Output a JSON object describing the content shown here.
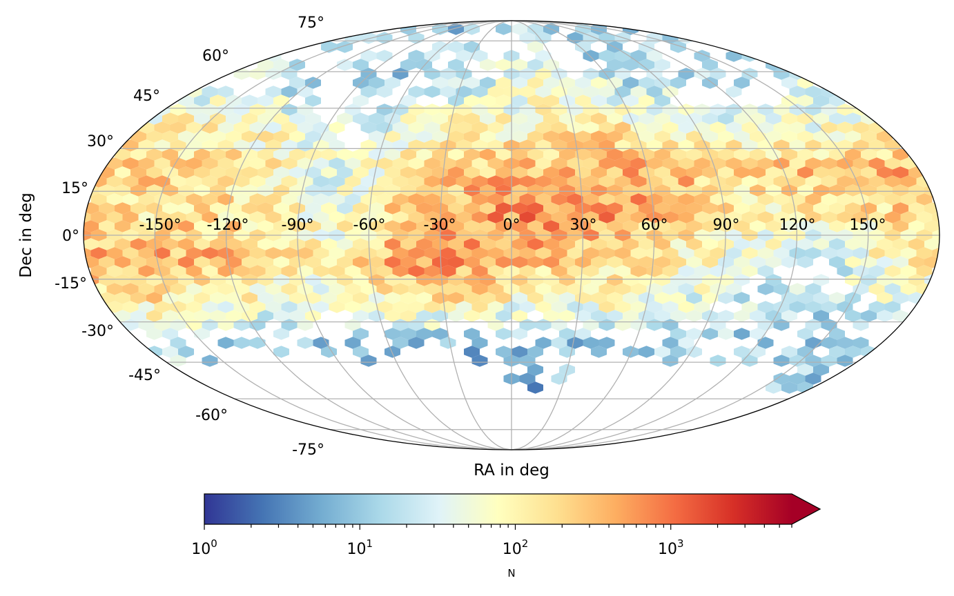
{
  "chart_data": {
    "type": "heatmap",
    "subtype": "hexbin sky map",
    "projection": "mollweide",
    "xlabel": "RA in deg",
    "ylabel": "Dec in deg",
    "ra_tick_labels": [
      "-150°",
      "-120°",
      "-90°",
      "-60°",
      "-30°",
      "0°",
      "30°",
      "60°",
      "90°",
      "120°",
      "150°"
    ],
    "dec_tick_labels": [
      "75°",
      "60°",
      "45°",
      "30°",
      "15°",
      "0°",
      "-15°",
      "-30°",
      "-45°",
      "-60°",
      "-75°"
    ],
    "grid": true,
    "colormap": "RdYlBu_r",
    "colormap_stops": [
      "#313695",
      "#4575b4",
      "#74add1",
      "#abd9e9",
      "#e0f3f8",
      "#ffffbf",
      "#fee090",
      "#fdae61",
      "#f46d43",
      "#d73027",
      "#a50026"
    ],
    "colorbar": {
      "label": "N",
      "scale": "log",
      "range": [
        1,
        6000
      ],
      "extend": "max",
      "tick_labels": [
        {
          "base": "10",
          "exp": "0"
        },
        {
          "base": "10",
          "exp": "1"
        },
        {
          "base": "10",
          "exp": "2"
        },
        {
          "base": "10",
          "exp": "3"
        }
      ],
      "location": "bottom"
    },
    "density_grid": {
      "description_units": "log10(N) per hexbin, approximate, by RA/Dec cell centre",
      "ra_centers": [
        -165,
        -135,
        -105,
        -75,
        -45,
        -15,
        15,
        45,
        75,
        105,
        135,
        165
      ],
      "dec_centers": [
        67.5,
        52.5,
        37.5,
        22.5,
        7.5,
        -7.5,
        -22.5,
        -37.5,
        -52.5,
        -67.5
      ],
      "log10_N": [
        [
          1.2,
          1.2,
          1.1,
          1.0,
          1.2,
          1.3,
          1.5,
          1.3,
          1.1,
          1.1,
          1.2,
          1.2
        ],
        [
          1.5,
          1.4,
          1.2,
          1.0,
          1.3,
          1.5,
          1.8,
          1.6,
          1.3,
          1.2,
          1.3,
          1.5
        ],
        [
          2.0,
          2.0,
          1.7,
          1.4,
          1.8,
          1.9,
          2.0,
          2.1,
          2.0,
          1.7,
          1.6,
          1.9
        ],
        [
          2.3,
          2.3,
          2.0,
          1.5,
          2.2,
          2.4,
          2.5,
          2.6,
          2.5,
          2.3,
          2.6,
          2.6
        ],
        [
          2.2,
          2.2,
          2.1,
          1.6,
          2.5,
          2.7,
          2.9,
          2.7,
          2.3,
          2.0,
          2.0,
          2.3
        ],
        [
          2.6,
          2.6,
          2.3,
          2.0,
          2.8,
          2.8,
          2.5,
          2.2,
          2.0,
          1.6,
          1.4,
          2.1
        ],
        [
          2.2,
          2.0,
          1.8,
          1.7,
          2.2,
          2.0,
          1.8,
          1.9,
          1.7,
          1.3,
          1.3,
          1.5
        ],
        [
          1.2,
          1.2,
          1.1,
          1.0,
          1.0,
          0.9,
          0.9,
          1.1,
          1.1,
          1.1,
          1.0,
          1.0
        ],
        [
          null,
          null,
          null,
          null,
          null,
          null,
          0.8,
          null,
          null,
          null,
          null,
          1.0
        ],
        [
          null,
          null,
          null,
          null,
          null,
          null,
          null,
          null,
          null,
          null,
          null,
          null
        ]
      ]
    }
  }
}
